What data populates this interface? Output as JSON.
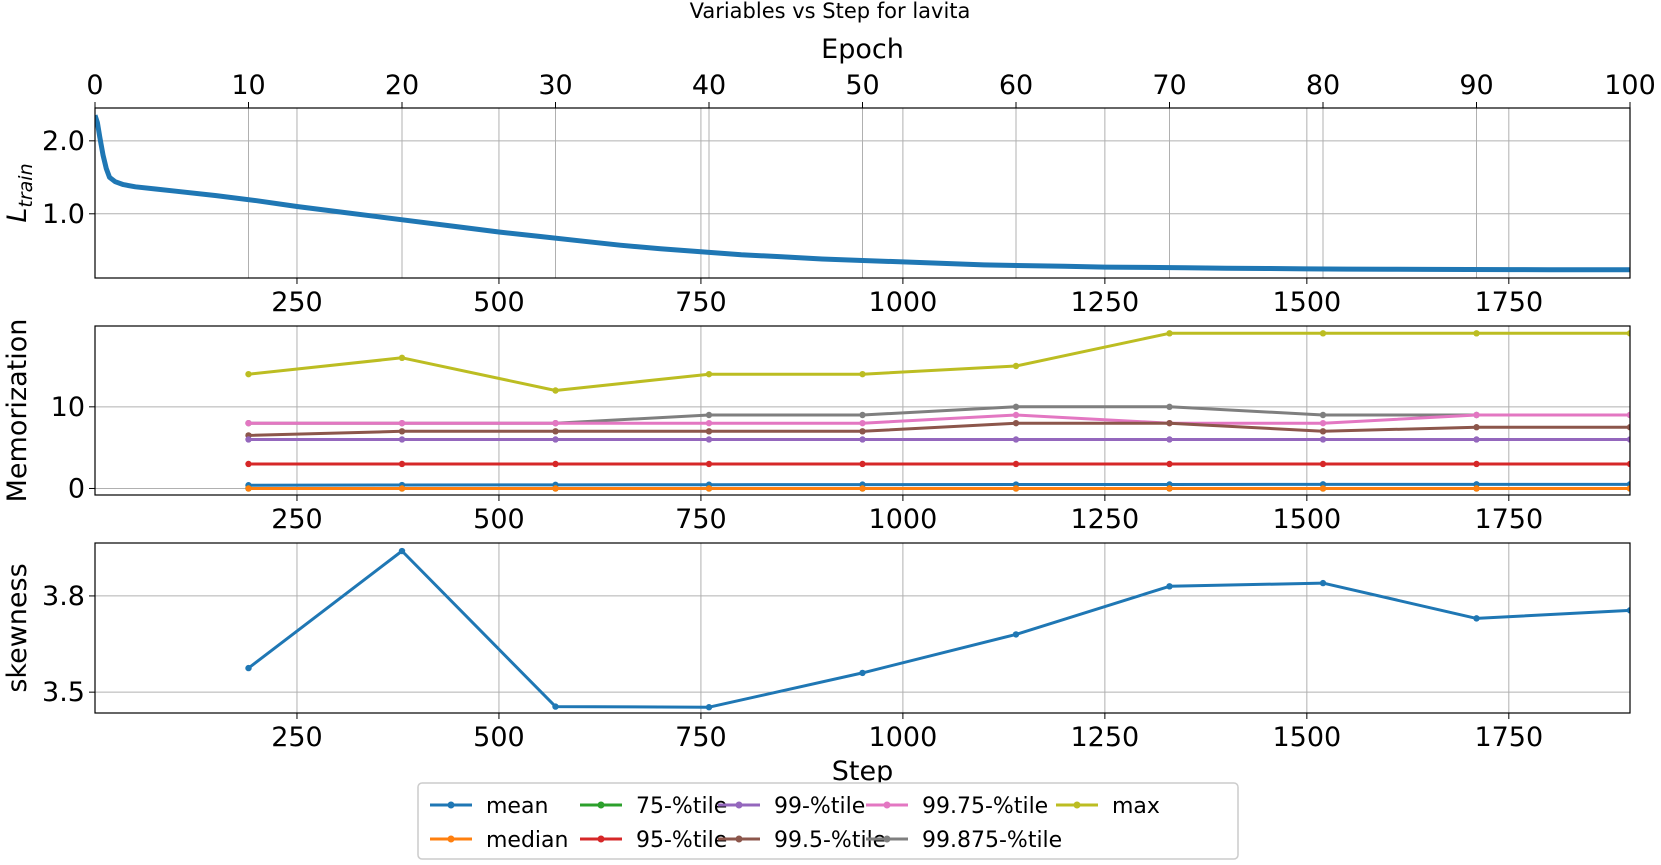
{
  "title": "Variables vs Step for lavita",
  "colors": {
    "mean": "#1f77b4",
    "median": "#ff7f0e",
    "p75": "#2ca02c",
    "p95": "#d62728",
    "p99": "#9467bd",
    "p995": "#8c564b",
    "p9975": "#e377c2",
    "p99875": "#7f7f7f",
    "max": "#bcbd22",
    "grid": "#b0b0b0"
  },
  "chart_data": [
    {
      "type": "line",
      "panel": "train-loss",
      "ylabel": "L",
      "ylabel_sub": "train",
      "xlabel_top": "Epoch",
      "x_top_ticks": [
        "0",
        "10",
        "20",
        "30",
        "40",
        "50",
        "60",
        "70",
        "80",
        "90",
        "100"
      ],
      "x_top_range": [
        0,
        100
      ],
      "xlim": [
        0,
        1900
      ],
      "ylim": [
        0.12,
        2.45
      ],
      "yticks": [
        1.0,
        2.0
      ],
      "ytick_labels": [
        "1.0",
        "2.0"
      ],
      "xticks": [
        250,
        500,
        750,
        1000,
        1250,
        1500,
        1750
      ],
      "xtick_labels": [
        "250",
        "500",
        "750",
        "1000",
        "1250",
        "1500",
        "1750"
      ],
      "grid": true,
      "series": [
        {
          "key": "loss",
          "color_key": "mean",
          "x": [
            0,
            3,
            6,
            10,
            14,
            18,
            25,
            35,
            50,
            75,
            100,
            150,
            200,
            250,
            300,
            350,
            400,
            450,
            500,
            550,
            600,
            650,
            700,
            750,
            800,
            850,
            900,
            950,
            1000,
            1050,
            1100,
            1150,
            1200,
            1250,
            1300,
            1350,
            1400,
            1450,
            1500,
            1550,
            1600,
            1650,
            1700,
            1750,
            1800,
            1850,
            1900
          ],
          "y": [
            2.35,
            2.25,
            2.05,
            1.8,
            1.62,
            1.5,
            1.44,
            1.4,
            1.37,
            1.34,
            1.31,
            1.25,
            1.18,
            1.1,
            1.03,
            0.96,
            0.89,
            0.82,
            0.75,
            0.69,
            0.63,
            0.57,
            0.52,
            0.48,
            0.44,
            0.41,
            0.38,
            0.36,
            0.34,
            0.32,
            0.3,
            0.29,
            0.28,
            0.27,
            0.265,
            0.26,
            0.255,
            0.25,
            0.245,
            0.242,
            0.24,
            0.238,
            0.236,
            0.235,
            0.234,
            0.233,
            0.232
          ]
        }
      ]
    },
    {
      "type": "line",
      "panel": "memorization",
      "ylabel": "Memorization",
      "xlim": [
        0,
        1900
      ],
      "ylim": [
        -0.8,
        19.9
      ],
      "yticks": [
        0,
        10
      ],
      "ytick_labels": [
        "0",
        "10"
      ],
      "xticks": [
        250,
        500,
        750,
        1000,
        1250,
        1500,
        1750
      ],
      "xtick_labels": [
        "250",
        "500",
        "750",
        "1000",
        "1250",
        "1500",
        "1750"
      ],
      "grid": true,
      "x": [
        190,
        380,
        570,
        760,
        950,
        1140,
        1330,
        1520,
        1710,
        1900
      ],
      "series": [
        {
          "name": "max",
          "color_key": "max",
          "values": [
            14,
            16,
            12,
            14,
            14,
            15,
            19,
            19,
            19,
            19
          ]
        },
        {
          "name": "99.875-%tile",
          "color_key": "p99875",
          "values": [
            8,
            8,
            8,
            9,
            9,
            10,
            10,
            9,
            9,
            9
          ]
        },
        {
          "name": "99.75-%tile",
          "color_key": "p9975",
          "values": [
            8,
            8,
            8,
            8,
            8,
            9,
            8,
            8,
            9,
            9
          ]
        },
        {
          "name": "99.5-%tile",
          "color_key": "p995",
          "values": [
            6.5,
            7,
            7,
            7,
            7,
            8,
            8,
            7,
            7.5,
            7.5
          ]
        },
        {
          "name": "99-%tile",
          "color_key": "p99",
          "values": [
            6,
            6,
            6,
            6,
            6,
            6,
            6,
            6,
            6,
            6
          ]
        },
        {
          "name": "95-%tile",
          "color_key": "p95",
          "values": [
            3,
            3,
            3,
            3,
            3,
            3,
            3,
            3,
            3,
            3
          ]
        },
        {
          "name": "mean",
          "color_key": "mean",
          "values": [
            0.4,
            0.42,
            0.44,
            0.46,
            0.47,
            0.48,
            0.49,
            0.5,
            0.5,
            0.5
          ]
        },
        {
          "name": "75-%tile",
          "color_key": "p75",
          "values": [
            0,
            0,
            0,
            0,
            0,
            0,
            0,
            0,
            0,
            0
          ]
        },
        {
          "name": "median",
          "color_key": "median",
          "values": [
            0,
            0,
            0,
            0,
            0,
            0,
            0,
            0,
            0,
            0
          ]
        }
      ]
    },
    {
      "type": "line",
      "panel": "skewness",
      "ylabel": "skewness",
      "xlabel": "Step",
      "xlim": [
        0,
        1900
      ],
      "ylim": [
        3.435,
        3.965
      ],
      "yticks": [
        3.5,
        3.8
      ],
      "ytick_labels": [
        "3.5",
        "3.8"
      ],
      "xticks": [
        250,
        500,
        750,
        1000,
        1250,
        1500,
        1750
      ],
      "xtick_labels": [
        "250",
        "500",
        "750",
        "1000",
        "1250",
        "1500",
        "1750"
      ],
      "grid": true,
      "series": [
        {
          "color_key": "mean",
          "x": [
            190,
            380,
            570,
            760,
            950,
            1140,
            1330,
            1520,
            1710,
            1900
          ],
          "y": [
            3.575,
            3.94,
            3.455,
            3.453,
            3.56,
            3.68,
            3.83,
            3.84,
            3.73,
            3.755
          ]
        }
      ]
    }
  ],
  "legend": {
    "placement": "bottom-center",
    "items": [
      {
        "label": "mean",
        "color_key": "mean"
      },
      {
        "label": "median",
        "color_key": "median"
      },
      {
        "label": "75-%tile",
        "color_key": "p75"
      },
      {
        "label": "95-%tile",
        "color_key": "p95"
      },
      {
        "label": "99-%tile",
        "color_key": "p99"
      },
      {
        "label": "99.5-%tile",
        "color_key": "p995"
      },
      {
        "label": "99.75-%tile",
        "color_key": "p9975"
      },
      {
        "label": "99.875-%tile",
        "color_key": "p99875"
      },
      {
        "label": "max",
        "color_key": "max"
      }
    ]
  }
}
